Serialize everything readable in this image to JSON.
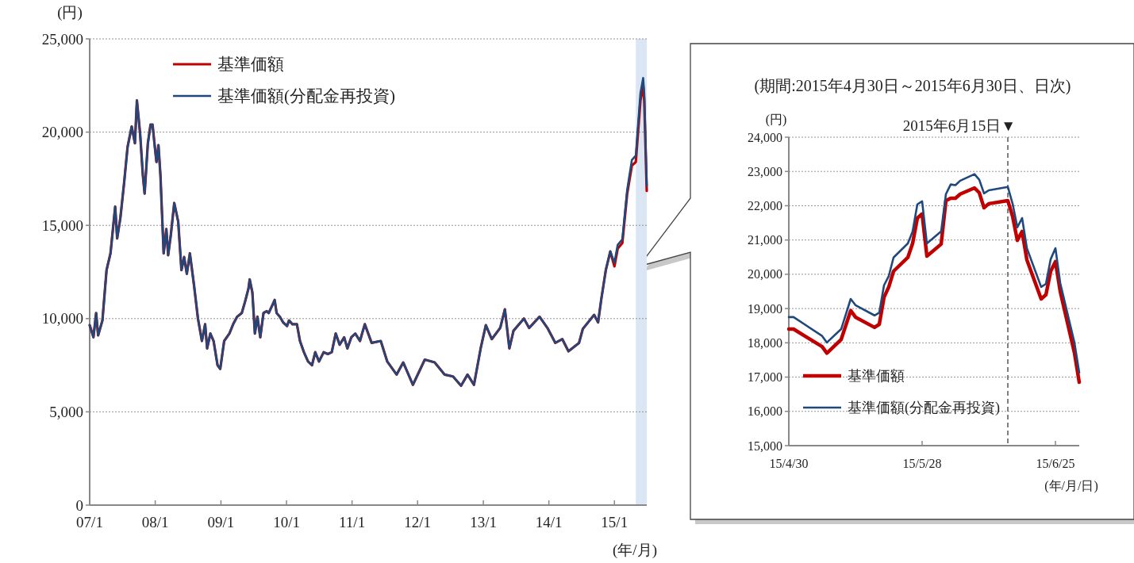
{
  "chart_data": [
    {
      "type": "line",
      "xlabel": "(年/月)",
      "ylabel": "(円)",
      "x": [
        "2007-01-01",
        "2007-01-22",
        "2007-02-06",
        "2007-02-17",
        "2007-03-13",
        "2007-04-05",
        "2007-04-27",
        "2007-05-23",
        "2007-06-03",
        "2007-06-21",
        "2007-07-12",
        "2007-07-31",
        "2007-08-23",
        "2007-09-10",
        "2007-09-21",
        "2007-10-09",
        "2007-10-24",
        "2007-11-03",
        "2007-11-21",
        "2007-12-06",
        "2007-12-17",
        "2008-01-01",
        "2008-01-08",
        "2008-01-19",
        "2008-01-30",
        "2008-02-17",
        "2008-03-03",
        "2008-03-13",
        "2008-03-28",
        "2008-04-16",
        "2008-05-08",
        "2008-05-26",
        "2008-06-10",
        "2008-06-25",
        "2008-07-12",
        "2008-08-04",
        "2008-08-26",
        "2008-09-17",
        "2008-10-05",
        "2008-10-16",
        "2008-11-03",
        "2008-11-21",
        "2008-12-13",
        "2008-12-28",
        "2009-01-19",
        "2009-02-17",
        "2009-03-10",
        "2009-04-01",
        "2009-04-27",
        "2009-05-15",
        "2009-06-03",
        "2009-06-10",
        "2009-06-25",
        "2009-07-09",
        "2009-07-23",
        "2009-08-08",
        "2009-08-26",
        "2009-09-13",
        "2009-09-24",
        "2009-10-13",
        "2009-10-27",
        "2009-11-07",
        "2009-11-25",
        "2009-12-13",
        "2010-01-04",
        "2010-01-15",
        "2010-02-03",
        "2010-02-28",
        "2010-03-17",
        "2010-04-08",
        "2010-05-01",
        "2010-05-23",
        "2010-06-10",
        "2010-07-01",
        "2010-07-27",
        "2010-08-19",
        "2010-09-10",
        "2010-10-02",
        "2010-10-24",
        "2010-11-18",
        "2010-12-06",
        "2010-12-28",
        "2011-01-19",
        "2011-02-14",
        "2011-03-13",
        "2011-04-20",
        "2011-06-10",
        "2011-07-16",
        "2011-09-06",
        "2011-10-13",
        "2011-12-06",
        "2012-02-10",
        "2012-04-05",
        "2012-05-30",
        "2012-07-16",
        "2012-08-30",
        "2012-10-05",
        "2012-11-10",
        "2012-12-17",
        "2013-01-15",
        "2013-02-17",
        "2013-04-05",
        "2013-05-01",
        "2013-05-26",
        "2013-06-18",
        "2013-08-15",
        "2013-09-13",
        "2013-11-10",
        "2013-12-24",
        "2014-02-06",
        "2014-03-17",
        "2014-04-20",
        "2014-06-18",
        "2014-07-09",
        "2014-09-10",
        "2014-10-02",
        "2014-10-20",
        "2014-11-14",
        "2014-12-09",
        "2015-01-01",
        "2015-01-19",
        "2015-02-14",
        "2015-03-13",
        "2015-04-08",
        "2015-04-30",
        "2015-05-26",
        "2015-06-10",
        "2015-06-16",
        "2015-06-30"
      ],
      "series": [
        {
          "name": "基準価額",
          "color": "#c00000",
          "values": [
            9650,
            9000,
            10300,
            9100,
            9900,
            12600,
            13500,
            16000,
            14300,
            15400,
            17300,
            19200,
            20300,
            19400,
            21700,
            19900,
            17700,
            16700,
            19400,
            20400,
            20400,
            19000,
            18400,
            19300,
            17700,
            13500,
            14800,
            13400,
            14500,
            16200,
            15200,
            12600,
            13300,
            12400,
            13500,
            11800,
            10000,
            8800,
            9700,
            8400,
            9200,
            8800,
            7500,
            7300,
            8800,
            9200,
            9700,
            10100,
            10300,
            10900,
            11600,
            12100,
            11400,
            9200,
            10100,
            9000,
            10300,
            10400,
            10300,
            10700,
            11000,
            10300,
            10100,
            9800,
            9600,
            9900,
            9700,
            9700,
            8800,
            8200,
            7700,
            7500,
            8200,
            7700,
            8200,
            8100,
            8200,
            9200,
            8600,
            9000,
            8400,
            9000,
            9200,
            8800,
            9700,
            8700,
            8800,
            7700,
            7000,
            7650,
            6450,
            7800,
            7650,
            7000,
            6900,
            6400,
            7000,
            6450,
            8400,
            9650,
            8900,
            9500,
            10500,
            8400,
            9350,
            10000,
            9500,
            10100,
            9500,
            8700,
            8900,
            8250,
            8700,
            9450,
            10200,
            9800,
            11050,
            12600,
            13600,
            12800,
            13750,
            14050,
            16700,
            18200,
            18400,
            21700,
            22500,
            21690,
            16850
          ]
        },
        {
          "name": "基準価額(分配金再投資)",
          "color": "#1f497d",
          "values": [
            9650,
            9000,
            10300,
            9100,
            9900,
            12600,
            13500,
            16000,
            14300,
            15400,
            17300,
            19200,
            20300,
            19400,
            21700,
            19900,
            17700,
            16700,
            19400,
            20400,
            20400,
            19000,
            18400,
            19300,
            17700,
            13500,
            14800,
            13400,
            14500,
            16200,
            15200,
            12600,
            13300,
            12400,
            13500,
            11800,
            10000,
            8800,
            9700,
            8400,
            9200,
            8800,
            7500,
            7300,
            8800,
            9200,
            9700,
            10100,
            10300,
            10900,
            11600,
            12100,
            11400,
            9200,
            10100,
            9000,
            10300,
            10400,
            10300,
            10700,
            11000,
            10300,
            10100,
            9800,
            9600,
            9900,
            9700,
            9700,
            8800,
            8200,
            7700,
            7500,
            8200,
            7700,
            8200,
            8100,
            8200,
            9200,
            8600,
            9000,
            8400,
            9000,
            9200,
            8800,
            9700,
            8700,
            8800,
            7700,
            7000,
            7650,
            6450,
            7800,
            7650,
            7000,
            6900,
            6400,
            7000,
            6450,
            8400,
            9650,
            8900,
            9500,
            10500,
            8400,
            9350,
            10000,
            9500,
            10100,
            9500,
            8700,
            8900,
            8250,
            8700,
            9450,
            10200,
            9800,
            11050,
            12600,
            13600,
            13000,
            13950,
            14250,
            16900,
            18500,
            18750,
            22100,
            22900,
            22060,
            17130
          ]
        }
      ],
      "xlim": [
        "2007-01-01",
        "2015-06-30"
      ],
      "xticks": [
        {
          "value": "2007-01-01",
          "label": "07/1"
        },
        {
          "value": "2008-01-01",
          "label": "08/1"
        },
        {
          "value": "2009-01-01",
          "label": "09/1"
        },
        {
          "value": "2010-01-01",
          "label": "10/1"
        },
        {
          "value": "2011-01-01",
          "label": "11/1"
        },
        {
          "value": "2012-01-01",
          "label": "12/1"
        },
        {
          "value": "2013-01-01",
          "label": "13/1"
        },
        {
          "value": "2014-01-01",
          "label": "14/1"
        },
        {
          "value": "2015-01-01",
          "label": "15/1"
        }
      ],
      "ylim": [
        0,
        25000
      ],
      "yticks": [
        0,
        {
          "value": 5000,
          "label": "5,000"
        },
        {
          "value": 10000,
          "label": "10,000"
        },
        {
          "value": 15000,
          "label": "15,000"
        },
        {
          "value": 20000,
          "label": "20,000"
        },
        {
          "value": 25000,
          "label": "25,000"
        }
      ],
      "grid": "y",
      "legend": "top left",
      "bands": [
        {
          "axis": "x",
          "from": "2015-04-30",
          "to": "2015-06-30",
          "color": "#dae6f4"
        }
      ]
    },
    {
      "type": "line",
      "title": "(期間:2015年4月30日～2015年6月30日、日次)",
      "xlabel": "(年/月/日)",
      "ylabel": "(円)",
      "x": [
        "2015-04-30",
        "2015-05-01",
        "2015-05-07",
        "2015-05-08",
        "2015-05-11",
        "2015-05-13",
        "2015-05-14",
        "2015-05-18",
        "2015-05-19",
        "2015-05-20",
        "2015-05-21",
        "2015-05-22",
        "2015-05-25",
        "2015-05-26",
        "2015-05-27",
        "2015-05-28",
        "2015-05-29",
        "2015-06-01",
        "2015-06-02",
        "2015-06-03",
        "2015-06-04",
        "2015-06-05",
        "2015-06-08",
        "2015-06-09",
        "2015-06-10",
        "2015-06-11",
        "2015-06-15",
        "2015-06-16",
        "2015-06-17",
        "2015-06-18",
        "2015-06-19",
        "2015-06-22",
        "2015-06-23",
        "2015-06-24",
        "2015-06-25",
        "2015-06-26",
        "2015-06-29",
        "2015-06-30"
      ],
      "series": [
        {
          "name": "基準価額",
          "color": "#c00000",
          "values": [
            18400,
            18400,
            17890,
            17700,
            18100,
            18940,
            18750,
            18450,
            18540,
            19330,
            19630,
            20090,
            20490,
            20900,
            21640,
            21760,
            20530,
            20880,
            22150,
            22220,
            22220,
            22340,
            22520,
            22380,
            21940,
            22060,
            22150,
            21690,
            20990,
            21250,
            20420,
            19280,
            19400,
            20090,
            20370,
            19500,
            17700,
            16850
          ]
        },
        {
          "name": "基準価額(分配金再投資)",
          "color": "#1f497d",
          "values": [
            18750,
            18750,
            18200,
            18010,
            18400,
            19280,
            19100,
            18800,
            18880,
            19680,
            19950,
            20490,
            20900,
            21250,
            22040,
            22130,
            20900,
            21250,
            22340,
            22620,
            22600,
            22730,
            22920,
            22760,
            22360,
            22450,
            22550,
            22060,
            21370,
            21640,
            20760,
            19630,
            19720,
            20440,
            20760,
            19750,
            18000,
            17130
          ]
        }
      ],
      "xlim": [
        "2015-04-30",
        "2015-06-30"
      ],
      "xticks": [
        {
          "value": "2015-04-30",
          "label": "15/4/30"
        },
        {
          "value": "2015-05-28",
          "label": "15/5/28"
        },
        {
          "value": "2015-06-25",
          "label": "15/6/25"
        }
      ],
      "ylim": [
        15000,
        24000
      ],
      "yticks": [
        {
          "value": 15000,
          "label": "15,000"
        },
        {
          "value": 16000,
          "label": "16,000"
        },
        {
          "value": 17000,
          "label": "17,000"
        },
        {
          "value": 18000,
          "label": "18,000"
        },
        {
          "value": 19000,
          "label": "19,000"
        },
        {
          "value": 20000,
          "label": "20,000"
        },
        {
          "value": 21000,
          "label": "21,000"
        },
        {
          "value": 22000,
          "label": "22,000"
        },
        {
          "value": 23000,
          "label": "23,000"
        },
        {
          "value": 24000,
          "label": "24,000"
        }
      ],
      "grid": "y",
      "legend": "bottom left",
      "ref_lines": [
        {
          "axis": "x",
          "value": "2015-06-15",
          "label": "2015年6月15日▼",
          "color": "#808080",
          "line_style": "dashed"
        }
      ]
    }
  ]
}
